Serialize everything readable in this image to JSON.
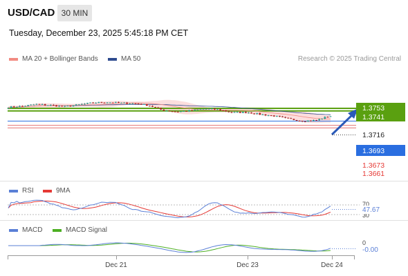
{
  "header": {
    "symbol": "USD/CAD",
    "interval": "30 MIN",
    "datetime": "Tuesday, December 23, 2025 5:45:18 PM CET"
  },
  "legend": {
    "ma20": "MA 20 + Bollinger Bands",
    "ma50": "MA 50",
    "credit": "Research © 2025 Trading Central",
    "rsi": "RSI",
    "ma9": "9MA",
    "macd": "MACD",
    "macd_signal": "MACD Signal"
  },
  "colors": {
    "candle_up": "#26a69a",
    "candle_down": "#b71c1c",
    "ma20": "#f28b82",
    "ma50": "#2f4b8f",
    "band": "#fcdede",
    "resistance": "#5aa010",
    "current": "#2a6ee0",
    "support": "#e57373",
    "rsi": "#5a7fd6",
    "rsi_ma": "#e53935",
    "macd": "#5a7fd6",
    "signal": "#4caf22",
    "arrow": "#2a5ab8"
  },
  "chart_data": {
    "type": "candlestick",
    "x_ticks": [
      "Dec 21",
      "Dec 23",
      "Dec 24"
    ],
    "price_axis": {
      "resistance_levels": [
        "1.3753",
        "1.3741"
      ],
      "current": "1.3716",
      "pivot": "1.3693",
      "support_levels": [
        "1.3673",
        "1.3661"
      ]
    },
    "price_path": [
      1.3758,
      1.3763,
      1.3772,
      1.3768,
      1.3761,
      1.377,
      1.3779,
      1.3782,
      1.3778,
      1.3776,
      1.3767,
      1.3745,
      1.3737,
      1.3742,
      1.3751,
      1.3747,
      1.3733,
      1.3735,
      1.3725,
      1.3717,
      1.3703,
      1.3694,
      1.3697,
      1.3719
    ],
    "rsi": {
      "value": "47.67",
      "levels": [
        "70",
        "30"
      ]
    },
    "macd": {
      "value": "-0.00",
      "zero": "0"
    }
  }
}
